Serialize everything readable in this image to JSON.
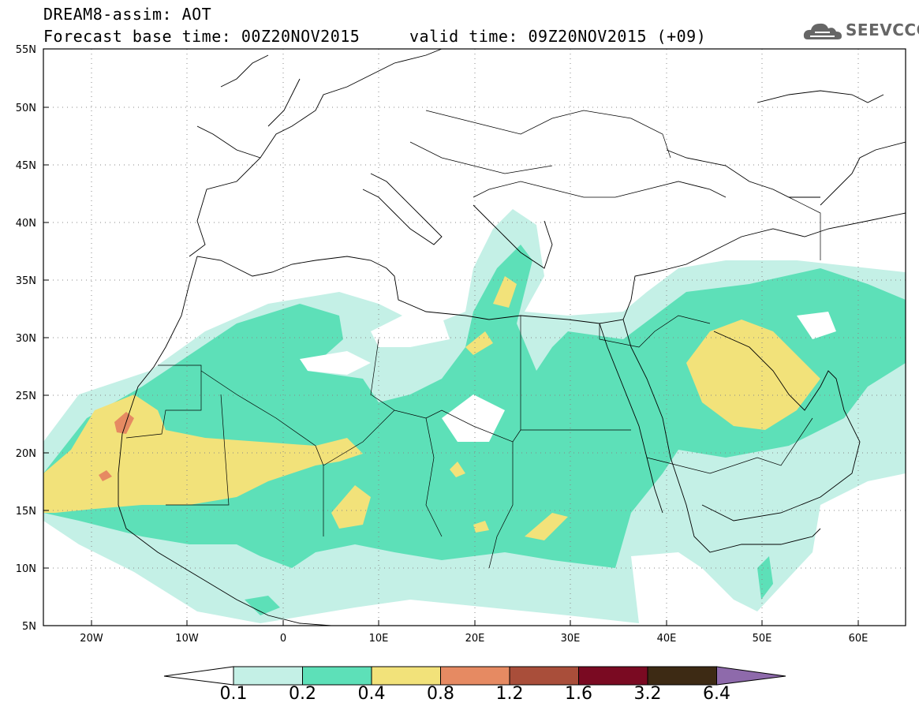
{
  "header": {
    "title_line1": "DREAM8-assim: AOT",
    "title_line2": "Forecast base time: 00Z20NOV2015     valid time: 09Z20NOV2015 (+09)",
    "logo_text": "SEEVCCC",
    "logo_icon": "cloud-icon"
  },
  "map": {
    "latitude_labels": [
      "55N",
      "50N",
      "45N",
      "40N",
      "35N",
      "30N",
      "25N",
      "20N",
      "15N",
      "10N",
      "5N"
    ],
    "longitude_labels": [
      "20W",
      "10W",
      "0",
      "10E",
      "20E",
      "30E",
      "40E",
      "50E",
      "60E"
    ],
    "lat_range": [
      5,
      55
    ],
    "lon_range": [
      -25,
      65
    ],
    "grid": "dotted"
  },
  "colorbar": {
    "labels": [
      "0.1",
      "0.2",
      "0.4",
      "0.8",
      "1.2",
      "1.6",
      "3.2",
      "6.4"
    ],
    "colors": [
      "#ffffff",
      "#c4f0e6",
      "#5de0b8",
      "#f2e27a",
      "#e68a62",
      "#a94e3a",
      "#7a0a22",
      "#3d2a14",
      "#8e6aab"
    ]
  },
  "aot_field": {
    "variable": "AOT",
    "bins": [
      "0.1-0.2",
      "0.2-0.4",
      "0.4-0.8",
      "0.8-1.2"
    ],
    "bin_colors": [
      "#c4f0e6",
      "#5de0b8",
      "#f2e27a",
      "#e68a62"
    ]
  }
}
